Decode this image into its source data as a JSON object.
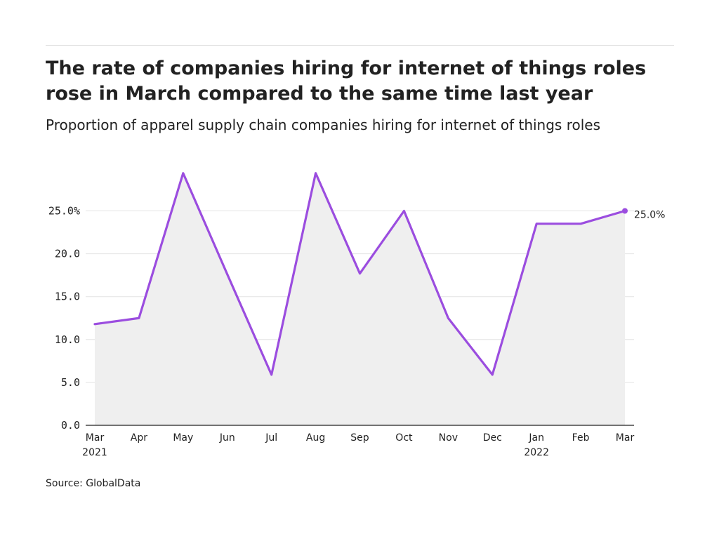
{
  "header": {
    "title": "The rate of companies hiring for internet of things roles rose in March compared to the same time last year",
    "subtitle": "Proportion of apparel supply chain companies hiring for internet of things roles"
  },
  "footer": {
    "source": "Source: GlobalData"
  },
  "colors": {
    "line": "#9b4ddf",
    "area": "#efefef",
    "grid": "#e3e3e3",
    "axis": "#222222"
  },
  "chart_data": {
    "type": "area",
    "title": "The rate of companies hiring for internet of things roles rose in March compared to the same time last year",
    "subtitle": "Proportion of apparel supply chain companies hiring for internet of things roles",
    "xlabel": "",
    "ylabel": "",
    "x": [
      "Mar 2021",
      "Apr 2021",
      "May 2021",
      "Jun 2021",
      "Jul 2021",
      "Aug 2021",
      "Sep 2021",
      "Oct 2021",
      "Nov 2021",
      "Dec 2021",
      "Jan 2022",
      "Feb 2022",
      "Mar 2022"
    ],
    "x_tick_labels": [
      {
        "top": "Mar",
        "bottom": "2021"
      },
      {
        "top": "Apr",
        "bottom": ""
      },
      {
        "top": "May",
        "bottom": ""
      },
      {
        "top": "Jun",
        "bottom": ""
      },
      {
        "top": "Jul",
        "bottom": ""
      },
      {
        "top": "Aug",
        "bottom": ""
      },
      {
        "top": "Sep",
        "bottom": ""
      },
      {
        "top": "Oct",
        "bottom": ""
      },
      {
        "top": "Nov",
        "bottom": ""
      },
      {
        "top": "Dec",
        "bottom": ""
      },
      {
        "top": "Jan",
        "bottom": "2022"
      },
      {
        "top": "Feb",
        "bottom": ""
      },
      {
        "top": "Mar",
        "bottom": ""
      }
    ],
    "series": [
      {
        "values": [
          11.8,
          12.5,
          29.4,
          17.6,
          5.9,
          29.4,
          17.7,
          25.0,
          12.5,
          5.9,
          23.5,
          23.5,
          25.0
        ]
      }
    ],
    "y_ticks": [
      0,
      5,
      10,
      15,
      20,
      25
    ],
    "y_tick_labels": [
      "0.0",
      "5.0",
      "10.0",
      "15.0",
      "20.0",
      "25.0%"
    ],
    "ylim": [
      0,
      30
    ],
    "end_label": "25.0%",
    "grid": true,
    "legend": "none"
  }
}
